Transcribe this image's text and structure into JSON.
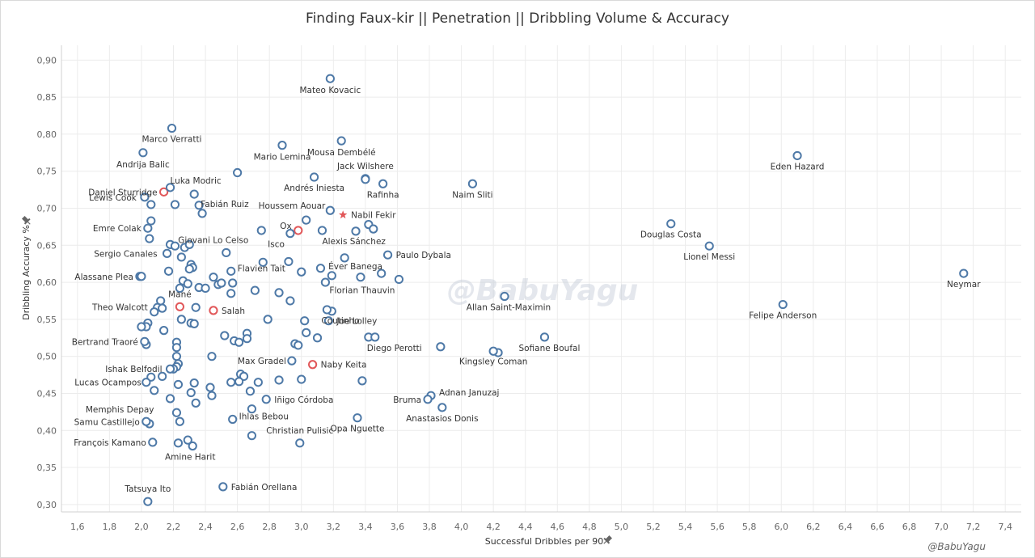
{
  "title": "Finding Faux-kir  ||  Penetration  ||  Dribbling Volume & Accuracy",
  "watermark": "@BabuYagu",
  "credit": "@BabuYagu",
  "colors": {
    "default": "#4e79a7",
    "highlight": "#e15759",
    "grid": "#ececec",
    "star": "#e15759"
  },
  "chart_data": {
    "type": "scatter",
    "title": "Finding Faux-kir  ||  Penetration  ||  Dribbling Volume & Accuracy",
    "xlabel": "Successful Dribbles per 90",
    "ylabel": "Dribbling Accuracy %",
    "xlim": [
      1.5,
      7.5
    ],
    "ylim": [
      0.29,
      0.92
    ],
    "xticks": [
      "1,6",
      "1,8",
      "2,0",
      "2,2",
      "2,4",
      "2,6",
      "2,8",
      "3,0",
      "3,2",
      "3,4",
      "3,6",
      "3,8",
      "4,0",
      "4,2",
      "4,4",
      "4,6",
      "4,8",
      "5,0",
      "5,2",
      "5,4",
      "5,6",
      "5,8",
      "6,0",
      "6,2",
      "6,4",
      "6,6",
      "6,8",
      "7,0",
      "7,2",
      "7,4"
    ],
    "yticks": [
      "0,30",
      "0,35",
      "0,40",
      "0,45",
      "0,50",
      "0,55",
      "0,60",
      "0,65",
      "0,70",
      "0,75",
      "0,80",
      "0,85",
      "0,90"
    ],
    "xtick_values": [
      1.6,
      1.8,
      2.0,
      2.2,
      2.4,
      2.6,
      2.8,
      3.0,
      3.2,
      3.4,
      3.6,
      3.8,
      4.0,
      4.2,
      4.4,
      4.6,
      4.8,
      5.0,
      5.2,
      5.4,
      5.6,
      5.8,
      6.0,
      6.2,
      6.4,
      6.6,
      6.8,
      7.0,
      7.2,
      7.4
    ],
    "ytick_values": [
      0.3,
      0.35,
      0.4,
      0.45,
      0.5,
      0.55,
      0.6,
      0.65,
      0.7,
      0.75,
      0.8,
      0.85,
      0.9
    ],
    "grid": true,
    "labeled_points": [
      {
        "name": "Mateo Kovacic",
        "x": 3.18,
        "y": 0.875
      },
      {
        "name": "Marco Verratti",
        "x": 2.19,
        "y": 0.808
      },
      {
        "name": "Mario Lemina",
        "x": 2.88,
        "y": 0.785
      },
      {
        "name": "Mousa Dembélé",
        "x": 3.25,
        "y": 0.791
      },
      {
        "name": "Andrija Balic",
        "x": 2.01,
        "y": 0.775
      },
      {
        "name": "Jack Wilshere",
        "x": 3.4,
        "y": 0.739
      },
      {
        "name": "Daniel Sturridge",
        "x": 2.14,
        "y": 0.722,
        "highlight": true
      },
      {
        "name": "Luka Modric",
        "x": 2.18,
        "y": 0.728
      },
      {
        "name": "Andrés Iniesta",
        "x": 3.08,
        "y": 0.742
      },
      {
        "name": "Rafinha",
        "x": 3.51,
        "y": 0.733
      },
      {
        "name": "Naim Sliti",
        "x": 4.07,
        "y": 0.733
      },
      {
        "name": "Eden Hazard",
        "x": 6.1,
        "y": 0.771
      },
      {
        "name": "Lewis Cook",
        "x": 2.02,
        "y": 0.715
      },
      {
        "name": "Fabián Ruiz",
        "x": 2.33,
        "y": 0.719
      },
      {
        "name": "Houssem Aouar",
        "x": 3.18,
        "y": 0.697
      },
      {
        "name": "Nabil Fekir",
        "x": 3.26,
        "y": 0.691,
        "highlight": true,
        "marker": "star"
      },
      {
        "name": "Ox",
        "x": 2.98,
        "y": 0.67,
        "highlight": true
      },
      {
        "name": "Emre Colak",
        "x": 2.04,
        "y": 0.673
      },
      {
        "name": "Giovani Lo Celso",
        "x": 2.3,
        "y": 0.651
      },
      {
        "name": "Isco",
        "x": 2.93,
        "y": 0.666
      },
      {
        "name": "Alexis Sánchez",
        "x": 3.13,
        "y": 0.67
      },
      {
        "name": "Douglas Costa",
        "x": 5.31,
        "y": 0.679
      },
      {
        "name": "Lionel Messi",
        "x": 5.55,
        "y": 0.649
      },
      {
        "name": "Sergio Canales",
        "x": 2.16,
        "y": 0.639
      },
      {
        "name": "Éver Banega",
        "x": 3.27,
        "y": 0.633
      },
      {
        "name": "Paulo Dybala",
        "x": 3.54,
        "y": 0.637
      },
      {
        "name": "Flavien Tait",
        "x": 2.56,
        "y": 0.615
      },
      {
        "name": "Alassane Plea",
        "x": 2.0,
        "y": 0.608
      },
      {
        "name": "Florian Thauvin",
        "x": 3.61,
        "y": 0.604
      },
      {
        "name": "Neymar",
        "x": 7.14,
        "y": 0.612
      },
      {
        "name": "Mané",
        "x": 2.24,
        "y": 0.567,
        "highlight": true
      },
      {
        "name": "Coutinho",
        "x": 3.16,
        "y": 0.563
      },
      {
        "name": "Allan Saint-Maximin",
        "x": 4.27,
        "y": 0.581
      },
      {
        "name": "Theo Walcott",
        "x": 2.08,
        "y": 0.56
      },
      {
        "name": "Salah",
        "x": 2.45,
        "y": 0.562,
        "highlight": true
      },
      {
        "name": "Felipe Anderson",
        "x": 6.01,
        "y": 0.57
      },
      {
        "name": "Joe Lolley",
        "x": 3.17,
        "y": 0.548
      },
      {
        "name": "Bertrand Traoré",
        "x": 2.02,
        "y": 0.52
      },
      {
        "name": "Diego Perotti",
        "x": 3.46,
        "y": 0.526
      },
      {
        "name": "Sofiane Boufal",
        "x": 4.52,
        "y": 0.526
      },
      {
        "name": "Kingsley Coman",
        "x": 4.2,
        "y": 0.507
      },
      {
        "name": "Max Gradel",
        "x": 2.94,
        "y": 0.494
      },
      {
        "name": "Naby Keita",
        "x": 3.07,
        "y": 0.489,
        "highlight": true
      },
      {
        "name": "Ishak Belfodil",
        "x": 2.18,
        "y": 0.483
      },
      {
        "name": "Lucas Ocampos",
        "x": 2.03,
        "y": 0.465
      },
      {
        "name": "Adnan Januzaj",
        "x": 3.81,
        "y": 0.447
      },
      {
        "name": "Bruma",
        "x": 3.79,
        "y": 0.442
      },
      {
        "name": "Memphis Depay",
        "x": 2.18,
        "y": 0.443
      },
      {
        "name": "Iñigo Córdoba",
        "x": 2.78,
        "y": 0.442
      },
      {
        "name": "Anastasios Donis",
        "x": 3.88,
        "y": 0.431
      },
      {
        "name": "Samu Castillejo",
        "x": 2.03,
        "y": 0.412
      },
      {
        "name": "Ihlas Bebou",
        "x": 2.57,
        "y": 0.415
      },
      {
        "name": "Opa Nguette",
        "x": 3.35,
        "y": 0.417
      },
      {
        "name": "François Kamano",
        "x": 2.07,
        "y": 0.384
      },
      {
        "name": "Amine Harit",
        "x": 2.32,
        "y": 0.379
      },
      {
        "name": "Christian Pulisic",
        "x": 2.99,
        "y": 0.383
      },
      {
        "name": "Tatsuya Ito",
        "x": 2.04,
        "y": 0.304
      },
      {
        "name": "Fabián Orellana",
        "x": 2.51,
        "y": 0.324
      }
    ],
    "other_points": [
      [
        2.06,
        0.705
      ],
      [
        2.21,
        0.705
      ],
      [
        2.36,
        0.704
      ],
      [
        2.38,
        0.693
      ],
      [
        2.6,
        0.748
      ],
      [
        3.4,
        0.74
      ],
      [
        3.34,
        0.669
      ],
      [
        3.42,
        0.678
      ],
      [
        3.45,
        0.672
      ],
      [
        3.03,
        0.684
      ],
      [
        2.75,
        0.67
      ],
      [
        2.05,
        0.659
      ],
      [
        2.06,
        0.683
      ],
      [
        2.18,
        0.651
      ],
      [
        2.21,
        0.649
      ],
      [
        2.27,
        0.647
      ],
      [
        2.25,
        0.634
      ],
      [
        2.31,
        0.624
      ],
      [
        2.32,
        0.62
      ],
      [
        2.3,
        0.618
      ],
      [
        2.53,
        0.64
      ],
      [
        2.76,
        0.627
      ],
      [
        2.92,
        0.628
      ],
      [
        3.12,
        0.619
      ],
      [
        3.37,
        0.607
      ],
      [
        3.5,
        0.612
      ],
      [
        3.19,
        0.609
      ],
      [
        3.15,
        0.6
      ],
      [
        3.0,
        0.614
      ],
      [
        2.17,
        0.615
      ],
      [
        1.99,
        0.608
      ],
      [
        2.26,
        0.602
      ],
      [
        2.29,
        0.598
      ],
      [
        2.36,
        0.593
      ],
      [
        2.4,
        0.592
      ],
      [
        2.45,
        0.607
      ],
      [
        2.48,
        0.597
      ],
      [
        2.5,
        0.599
      ],
      [
        2.57,
        0.599
      ],
      [
        2.56,
        0.585
      ],
      [
        2.71,
        0.589
      ],
      [
        2.86,
        0.586
      ],
      [
        2.93,
        0.575
      ],
      [
        2.24,
        0.592
      ],
      [
        2.12,
        0.575
      ],
      [
        2.1,
        0.566
      ],
      [
        2.13,
        0.565
      ],
      [
        2.34,
        0.566
      ],
      [
        3.19,
        0.561
      ],
      [
        2.04,
        0.545
      ],
      [
        2.03,
        0.54
      ],
      [
        2.0,
        0.54
      ],
      [
        2.14,
        0.535
      ],
      [
        2.25,
        0.55
      ],
      [
        2.31,
        0.545
      ],
      [
        2.33,
        0.544
      ],
      [
        2.79,
        0.55
      ],
      [
        3.02,
        0.548
      ],
      [
        2.52,
        0.528
      ],
      [
        2.66,
        0.531
      ],
      [
        2.58,
        0.521
      ],
      [
        2.61,
        0.519
      ],
      [
        2.66,
        0.524
      ],
      [
        3.03,
        0.532
      ],
      [
        3.1,
        0.525
      ],
      [
        2.96,
        0.517
      ],
      [
        2.98,
        0.515
      ],
      [
        3.42,
        0.526
      ],
      [
        3.87,
        0.513
      ],
      [
        4.23,
        0.505
      ],
      [
        2.03,
        0.516
      ],
      [
        2.22,
        0.519
      ],
      [
        2.22,
        0.512
      ],
      [
        2.22,
        0.5
      ],
      [
        2.44,
        0.5
      ],
      [
        2.23,
        0.49
      ],
      [
        2.22,
        0.486
      ],
      [
        2.2,
        0.483
      ],
      [
        2.62,
        0.476
      ],
      [
        2.64,
        0.473
      ],
      [
        2.61,
        0.466
      ],
      [
        2.56,
        0.465
      ],
      [
        2.06,
        0.472
      ],
      [
        2.13,
        0.473
      ],
      [
        2.08,
        0.454
      ],
      [
        2.23,
        0.462
      ],
      [
        2.33,
        0.464
      ],
      [
        2.43,
        0.458
      ],
      [
        2.31,
        0.451
      ],
      [
        2.44,
        0.447
      ],
      [
        2.68,
        0.453
      ],
      [
        2.73,
        0.465
      ],
      [
        2.86,
        0.468
      ],
      [
        3.0,
        0.469
      ],
      [
        3.38,
        0.467
      ],
      [
        2.34,
        0.437
      ],
      [
        2.69,
        0.429
      ],
      [
        2.22,
        0.424
      ],
      [
        2.24,
        0.412
      ],
      [
        2.05,
        0.409
      ],
      [
        2.69,
        0.393
      ],
      [
        2.23,
        0.383
      ],
      [
        2.29,
        0.387
      ]
    ]
  }
}
